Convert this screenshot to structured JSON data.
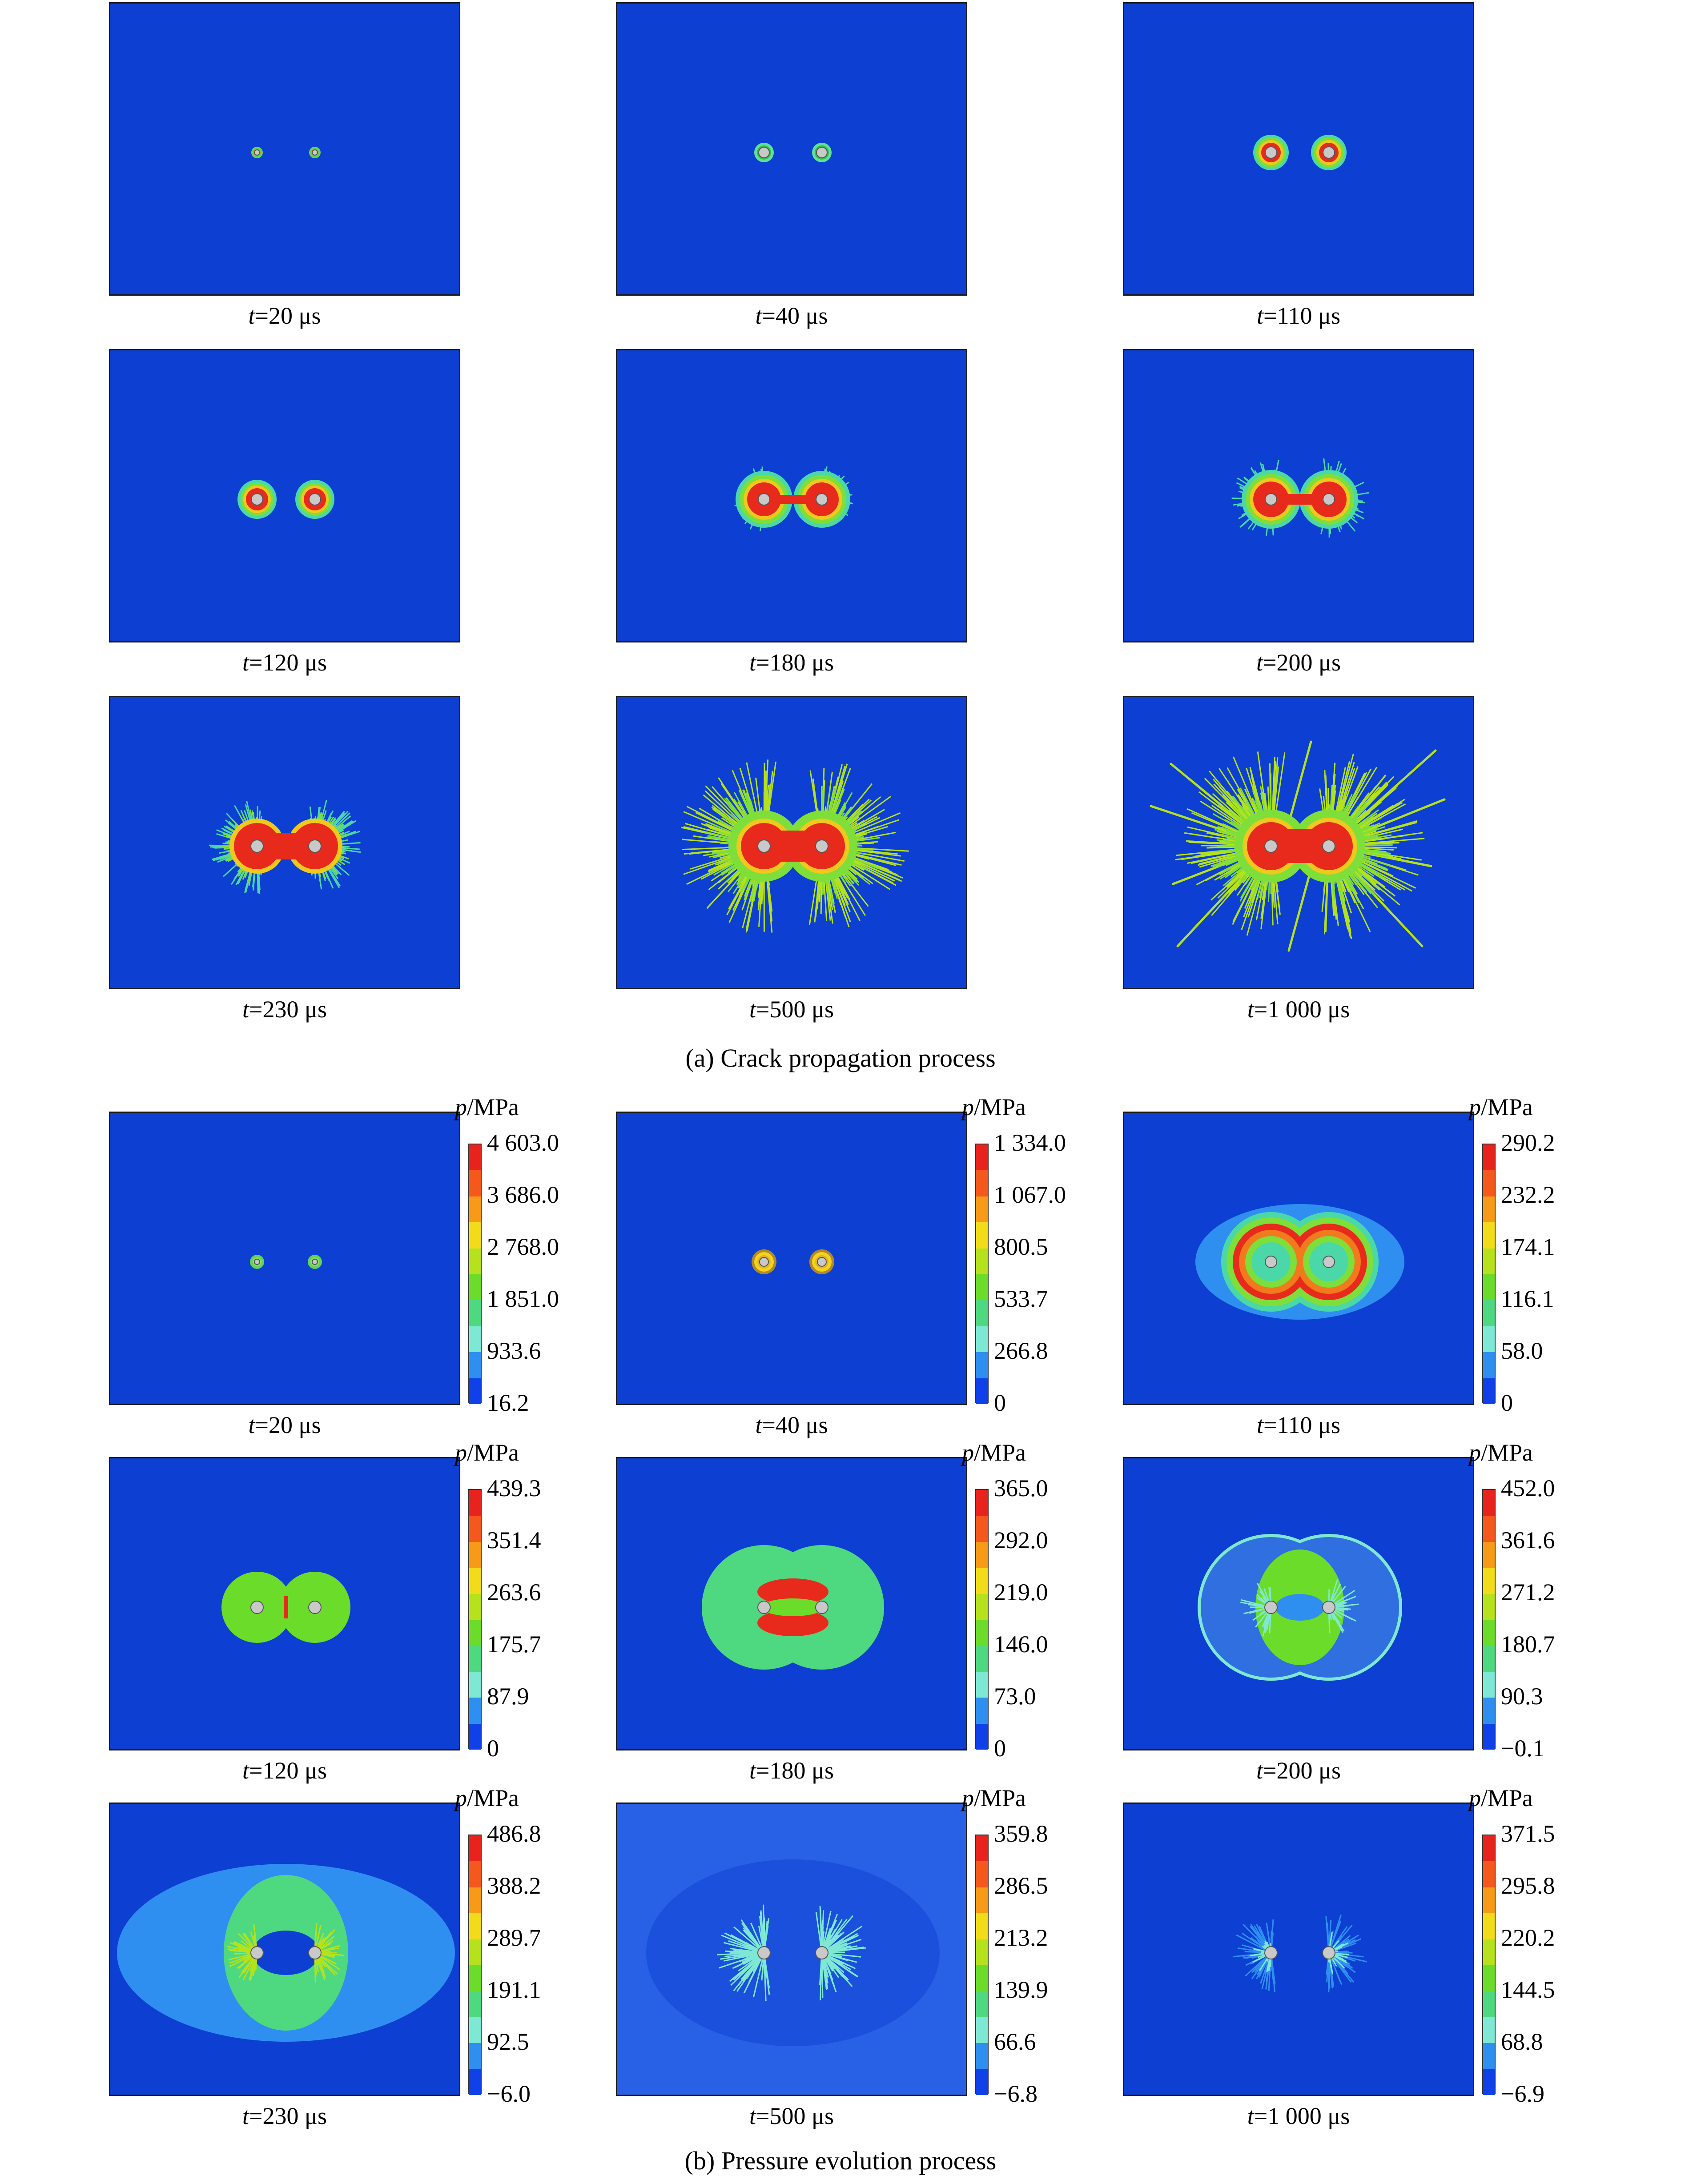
{
  "section_a": {
    "caption": "(a) Crack propagation process",
    "panels": [
      {
        "t_var": "t",
        "t_val": "=20 μs"
      },
      {
        "t_var": "t",
        "t_val": "=40 μs"
      },
      {
        "t_var": "t",
        "t_val": "=110 μs"
      },
      {
        "t_var": "t",
        "t_val": "=120 μs"
      },
      {
        "t_var": "t",
        "t_val": "=180 μs"
      },
      {
        "t_var": "t",
        "t_val": "=200 μs"
      },
      {
        "t_var": "t",
        "t_val": "=230 μs"
      },
      {
        "t_var": "t",
        "t_val": "=500 μs"
      },
      {
        "t_var": "t",
        "t_val": "=1 000 μs"
      }
    ]
  },
  "section_b": {
    "caption": "(b) Pressure evolution process",
    "colorbar_title_var": "p",
    "colorbar_title_unit": "/MPa",
    "colorbar_colors": [
      "#e8231d",
      "#f4581c",
      "#f79a17",
      "#f2dc1a",
      "#b5e21c",
      "#6cdc2a",
      "#4ed880",
      "#7fe8d4",
      "#2f8ff0",
      "#1040e8"
    ],
    "panels": [
      {
        "t_var": "t",
        "t_val": "=20 μs",
        "ticks": [
          "4 603.0",
          "3 686.0",
          "2 768.0",
          "1 851.0",
          "933.6",
          "16.2"
        ]
      },
      {
        "t_var": "t",
        "t_val": "=40 μs",
        "ticks": [
          "1 334.0",
          "1 067.0",
          "800.5",
          "533.7",
          "266.8",
          "0"
        ]
      },
      {
        "t_var": "t",
        "t_val": "=110 μs",
        "ticks": [
          "290.2",
          "232.2",
          "174.1",
          "116.1",
          "58.0",
          "0"
        ]
      },
      {
        "t_var": "t",
        "t_val": "=120 μs",
        "ticks": [
          "439.3",
          "351.4",
          "263.6",
          "175.7",
          "87.9",
          "0"
        ]
      },
      {
        "t_var": "t",
        "t_val": "=180 μs",
        "ticks": [
          "365.0",
          "292.0",
          "219.0",
          "146.0",
          "73.0",
          "0"
        ]
      },
      {
        "t_var": "t",
        "t_val": "=200 μs",
        "ticks": [
          "452.0",
          "361.6",
          "271.2",
          "180.7",
          "90.3",
          "−0.1"
        ]
      },
      {
        "t_var": "t",
        "t_val": "=230 μs",
        "ticks": [
          "486.8",
          "388.2",
          "289.7",
          "191.1",
          "92.5",
          "−6.0"
        ]
      },
      {
        "t_var": "t",
        "t_val": "=500 μs",
        "ticks": [
          "359.8",
          "286.5",
          "213.2",
          "139.9",
          "66.6",
          "−6.8"
        ]
      },
      {
        "t_var": "t",
        "t_val": "=1 000 μs",
        "ticks": [
          "371.5",
          "295.8",
          "220.2",
          "144.5",
          "68.8",
          "−6.9"
        ]
      }
    ]
  }
}
